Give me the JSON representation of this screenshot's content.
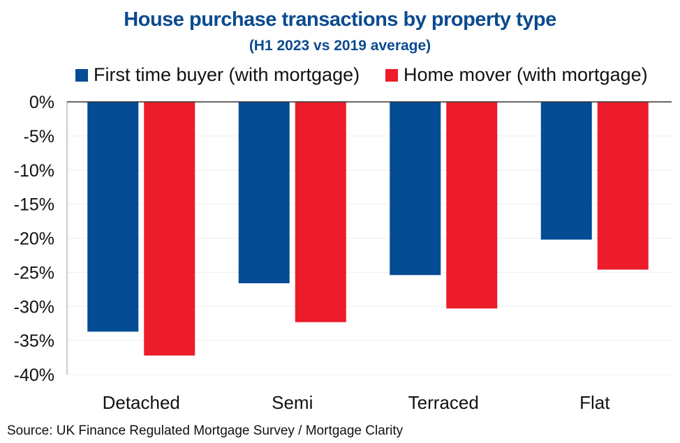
{
  "chart_data": {
    "type": "bar",
    "title": "House purchase transactions by property type",
    "subtitle": "(H1 2023 vs 2019 average)",
    "categories": [
      "Detached",
      "Semi",
      "Terraced",
      "Flat"
    ],
    "series": [
      {
        "name": "First time buyer (with mortgage)",
        "color": "#044c94",
        "values": [
          -33.7,
          -26.6,
          -25.4,
          -20.2
        ]
      },
      {
        "name": "Home mover (with mortgage)",
        "color": "#ec1c2a",
        "values": [
          -37.2,
          -32.3,
          -30.3,
          -24.6
        ]
      }
    ],
    "ylim": [
      -40,
      0
    ],
    "yticks": [
      0,
      -5,
      -10,
      -15,
      -20,
      -25,
      -30,
      -35,
      -40
    ],
    "ytick_labels": [
      "0%",
      "-5%",
      "-10%",
      "-15%",
      "-20%",
      "-25%",
      "-30%",
      "-35%",
      "-40%"
    ],
    "xlabel": "",
    "ylabel": "",
    "grid": true,
    "legend_position": "top"
  },
  "source": "Source: UK Finance Regulated Mortgage Survey / Mortgage Clarity"
}
